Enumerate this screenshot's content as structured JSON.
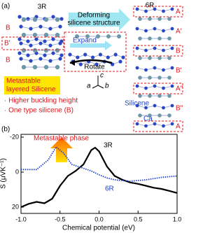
{
  "panel_a": {
    "label": "(a)",
    "left_title": "3R",
    "right_title": "6R",
    "left_layers": [
      "B",
      "B'",
      "B"
    ],
    "deform_label": [
      "Deforming",
      "silicene structure"
    ],
    "expand": "Expand",
    "rotate": "Rotate",
    "axes": [
      "c",
      "a",
      "b"
    ],
    "box_title": [
      "Metastable",
      "layered Silicene"
    ],
    "bullets": [
      "· Higher buckling height",
      "· One type silicene (B)"
    ],
    "right_layers": [
      "A",
      "A'",
      "B",
      "B'",
      "A''",
      "B''",
      "A"
    ],
    "silicene": "Silicene",
    "ca": "Ca"
  },
  "chart_data": {
    "type": "line",
    "panel_label": "(b)",
    "annotation": "Metastable phase",
    "x_label": "Chemical potential (eV)",
    "y_label": "S (μVK⁻¹)",
    "xlim": [
      -1.0,
      1.0
    ],
    "xticks": [
      {
        "value": -1.0,
        "label": "-1.0"
      },
      {
        "value": -0.5,
        "label": "-0.5"
      },
      {
        "value": 0,
        "label": "0.0"
      },
      {
        "value": 0.5,
        "label": "0.5"
      },
      {
        "value": 1.0,
        "label": "1.0"
      }
    ],
    "ylim": [
      23.6,
      -21.6
    ],
    "yticks": [
      -20,
      0,
      20
    ],
    "series": [
      {
        "name": "3R",
        "color": "#000000",
        "style": "solid",
        "x": [
          -1.0,
          -0.9,
          -0.8,
          -0.7,
          -0.6,
          -0.5,
          -0.4,
          -0.3,
          -0.2,
          -0.1,
          -0.05,
          0.0,
          0.1,
          0.2,
          0.3,
          0.4,
          0.5,
          0.6,
          0.7,
          0.8,
          0.9,
          1.0
        ],
        "values": [
          20,
          18.1,
          17,
          17.8,
          15.2,
          7.8,
          2.2,
          -0.7,
          -4.4,
          -12.6,
          -14,
          -11.9,
          -3.3,
          2.2,
          4.4,
          5.9,
          6.7,
          7.8,
          8.9,
          9.6,
          10.7,
          11.9
        ]
      },
      {
        "name": "6R",
        "color": "#1c3fd0",
        "style": "dotted",
        "x": [
          -1.0,
          -0.8,
          -0.65,
          -0.55,
          -0.45,
          -0.35,
          -0.2,
          -0.1,
          0.0,
          0.1,
          0.2,
          0.4,
          0.6,
          0.8,
          1.0
        ],
        "values": [
          -1.5,
          -1.5,
          -7,
          -14.4,
          -10.7,
          -4.4,
          -2.2,
          -0.7,
          1.5,
          3.3,
          4.4,
          5.2,
          4.4,
          3,
          2.2
        ]
      }
    ]
  }
}
